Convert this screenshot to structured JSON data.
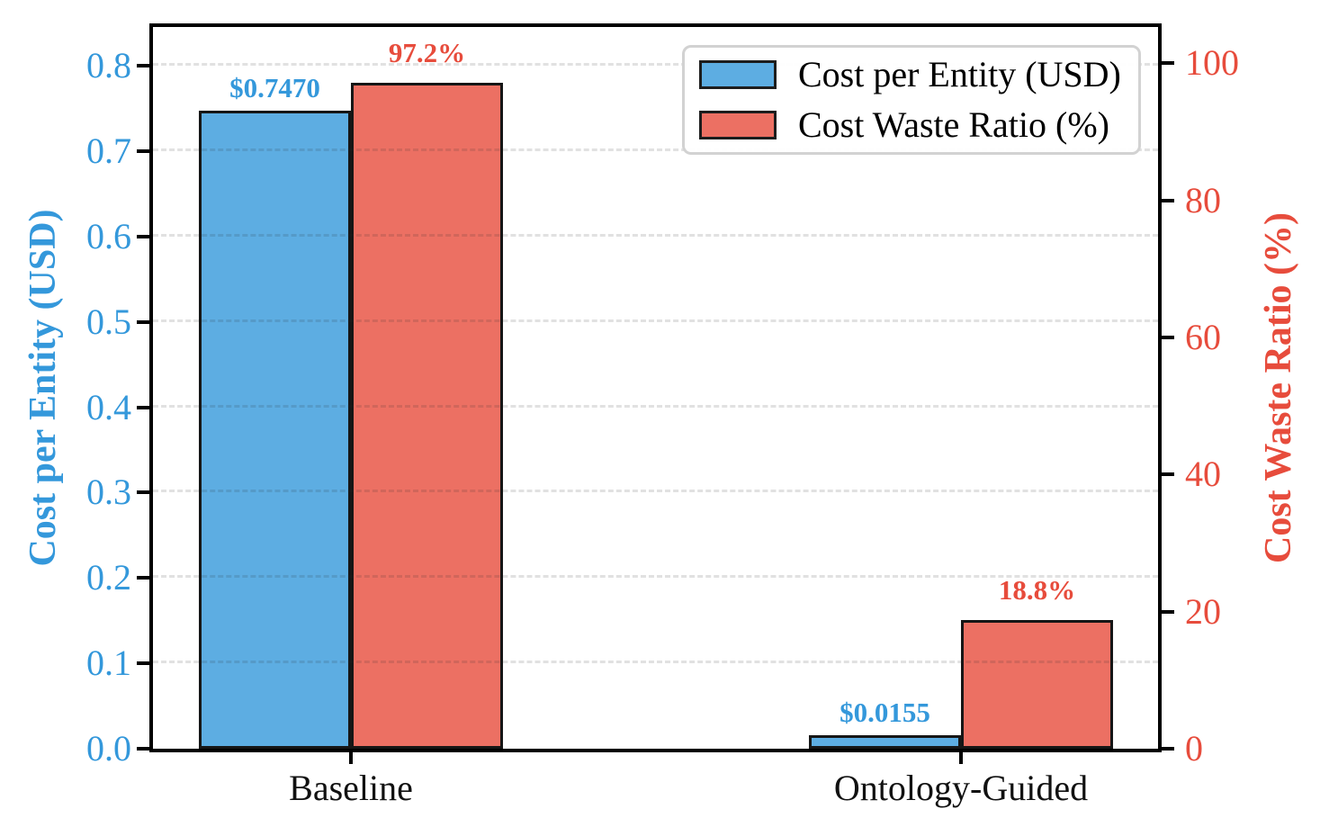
{
  "chart_data": {
    "type": "bar",
    "title": "",
    "categories": [
      "Baseline",
      "Ontology-Guided"
    ],
    "series": [
      {
        "name": "Cost per Entity (USD)",
        "axis": "left",
        "values": [
          0.747,
          0.0155
        ],
        "value_labels": [
          "$0.7470",
          "$0.0155"
        ],
        "color": "#5DADE2",
        "label_color": "#3498DB"
      },
      {
        "name": "Cost Waste Ratio (%)",
        "axis": "right",
        "values": [
          97.2,
          18.8
        ],
        "value_labels": [
          "97.2%",
          "18.8%"
        ],
        "color": "#EC7063",
        "label_color": "#E74C3C"
      }
    ],
    "left_axis": {
      "label": "Cost per Entity (USD)",
      "color": "#3498DB",
      "tick_labels": [
        "0.0",
        "0.1",
        "0.2",
        "0.3",
        "0.4",
        "0.5",
        "0.6",
        "0.7",
        "0.8"
      ],
      "tick_values": [
        0,
        0.1,
        0.2,
        0.3,
        0.4,
        0.5,
        0.6,
        0.7,
        0.8
      ],
      "range": [
        0,
        0.8455
      ]
    },
    "right_axis": {
      "label": "Cost Waste Ratio (%)",
      "color": "#E74C3C",
      "tick_labels": [
        "0",
        "20",
        "40",
        "60",
        "80",
        "100"
      ],
      "tick_values": [
        0,
        20,
        40,
        60,
        80,
        100
      ],
      "range": [
        0,
        105.3
      ]
    },
    "legend": {
      "position": "upper right",
      "entries": [
        "Cost per Entity (USD)",
        "Cost Waste Ratio (%)"
      ]
    },
    "grid": true
  }
}
